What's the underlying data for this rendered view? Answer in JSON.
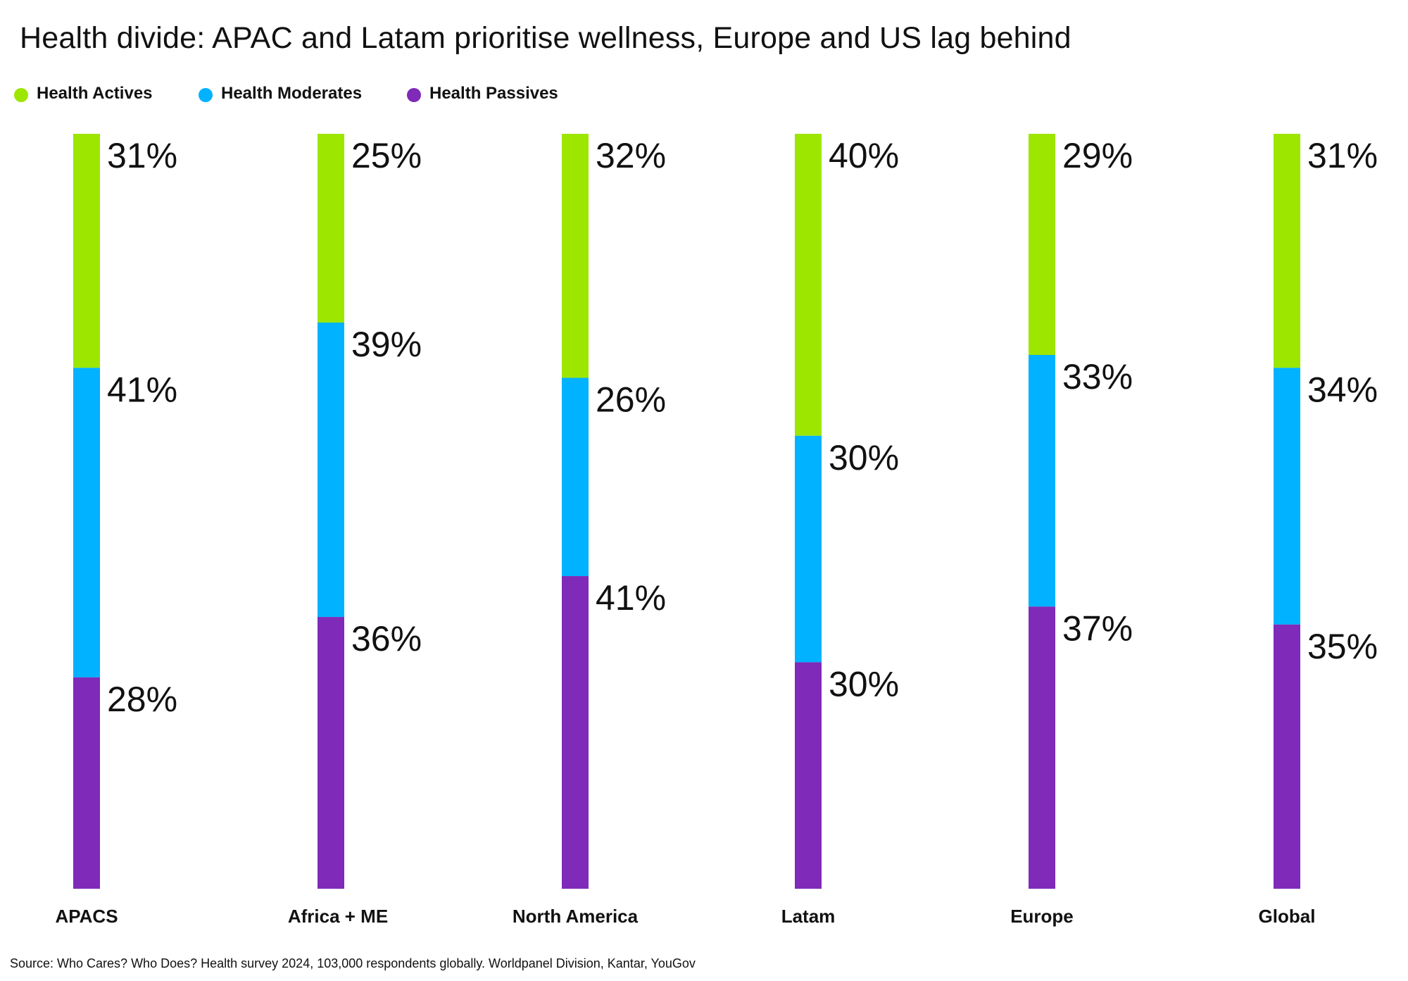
{
  "chart_data": {
    "type": "bar",
    "orientation": "vertical",
    "stacked": true,
    "title": "Health divide: APAC and Latam prioritise wellness, Europe and US lag behind",
    "categories": [
      "APACS",
      "Africa + ME",
      "North America",
      "Latam",
      "Europe",
      "Global"
    ],
    "series": [
      {
        "name": "Health Actives",
        "color": "#9de600",
        "values": [
          31,
          25,
          32,
          40,
          29,
          31
        ]
      },
      {
        "name": "Health Moderates",
        "color": "#00b2ff",
        "values": [
          41,
          39,
          26,
          30,
          33,
          34
        ]
      },
      {
        "name": "Health Passives",
        "color": "#7f2ab8",
        "values": [
          28,
          36,
          41,
          30,
          37,
          35
        ]
      }
    ],
    "value_suffix": "%",
    "legend_position": "top-left",
    "grid": false,
    "source": "Source: Who Cares? Who Does? Health survey 2024, 103,000 respondents globally. Worldpanel Division, Kantar, YouGov"
  }
}
